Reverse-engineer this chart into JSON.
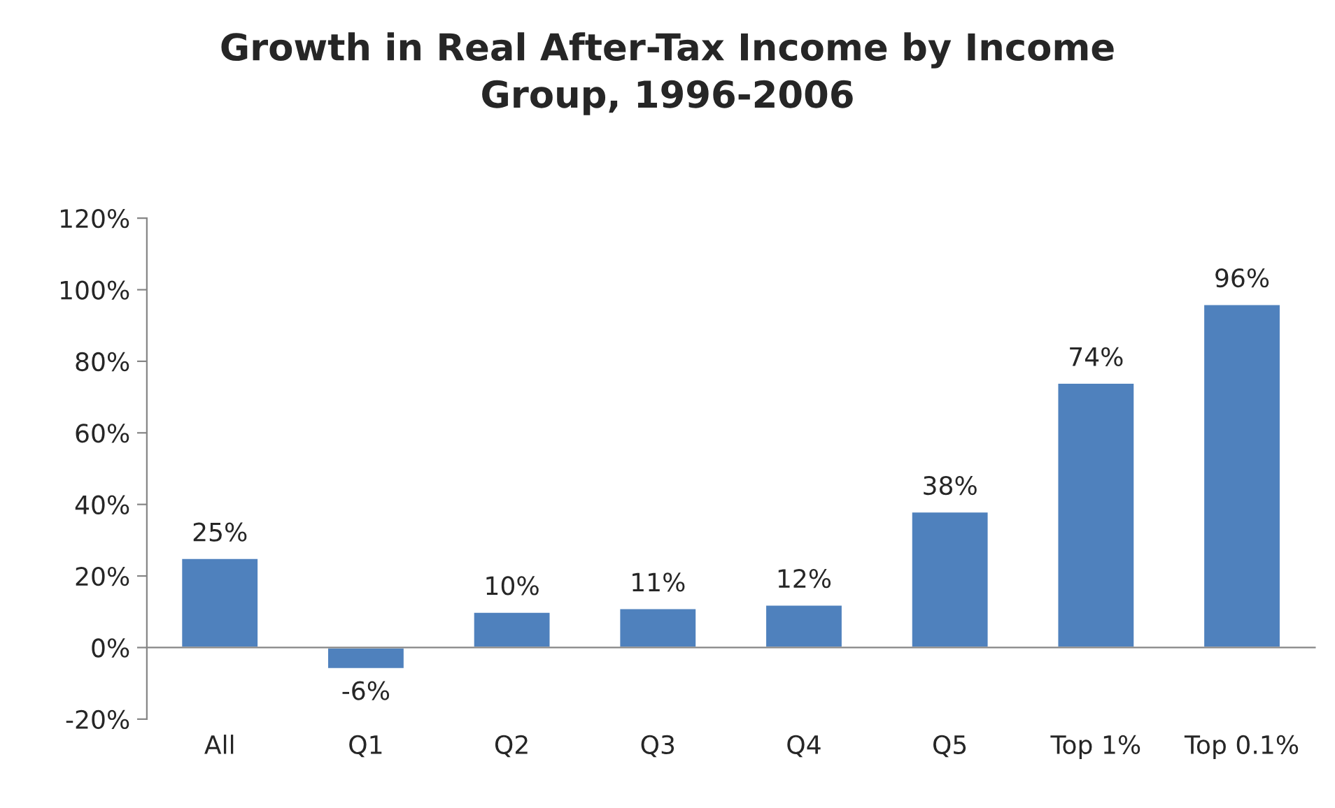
{
  "chart_data": {
    "type": "bar",
    "title": "Growth in Real After-Tax Income by Income\nGroup, 1996-2006",
    "categories": [
      "All",
      "Q1",
      "Q2",
      "Q3",
      "Q4",
      "Q5",
      "Top 1%",
      "Top 0.1%"
    ],
    "values": [
      25,
      -6,
      10,
      11,
      12,
      38,
      74,
      96
    ],
    "value_labels": [
      "25%",
      "-6%",
      "10%",
      "11%",
      "12%",
      "38%",
      "74%",
      "96%"
    ],
    "color": "#4f81bd",
    "ylim": [
      -20,
      120
    ],
    "yticks": [
      {
        "value": -20,
        "label": "-20%"
      },
      {
        "value": 0,
        "label": "0%"
      },
      {
        "value": 20,
        "label": "20%"
      },
      {
        "value": 40,
        "label": "40%"
      },
      {
        "value": 60,
        "label": "60%"
      },
      {
        "value": 80,
        "label": "80%"
      },
      {
        "value": 100,
        "label": "100%"
      },
      {
        "value": 120,
        "label": "120%"
      }
    ]
  }
}
